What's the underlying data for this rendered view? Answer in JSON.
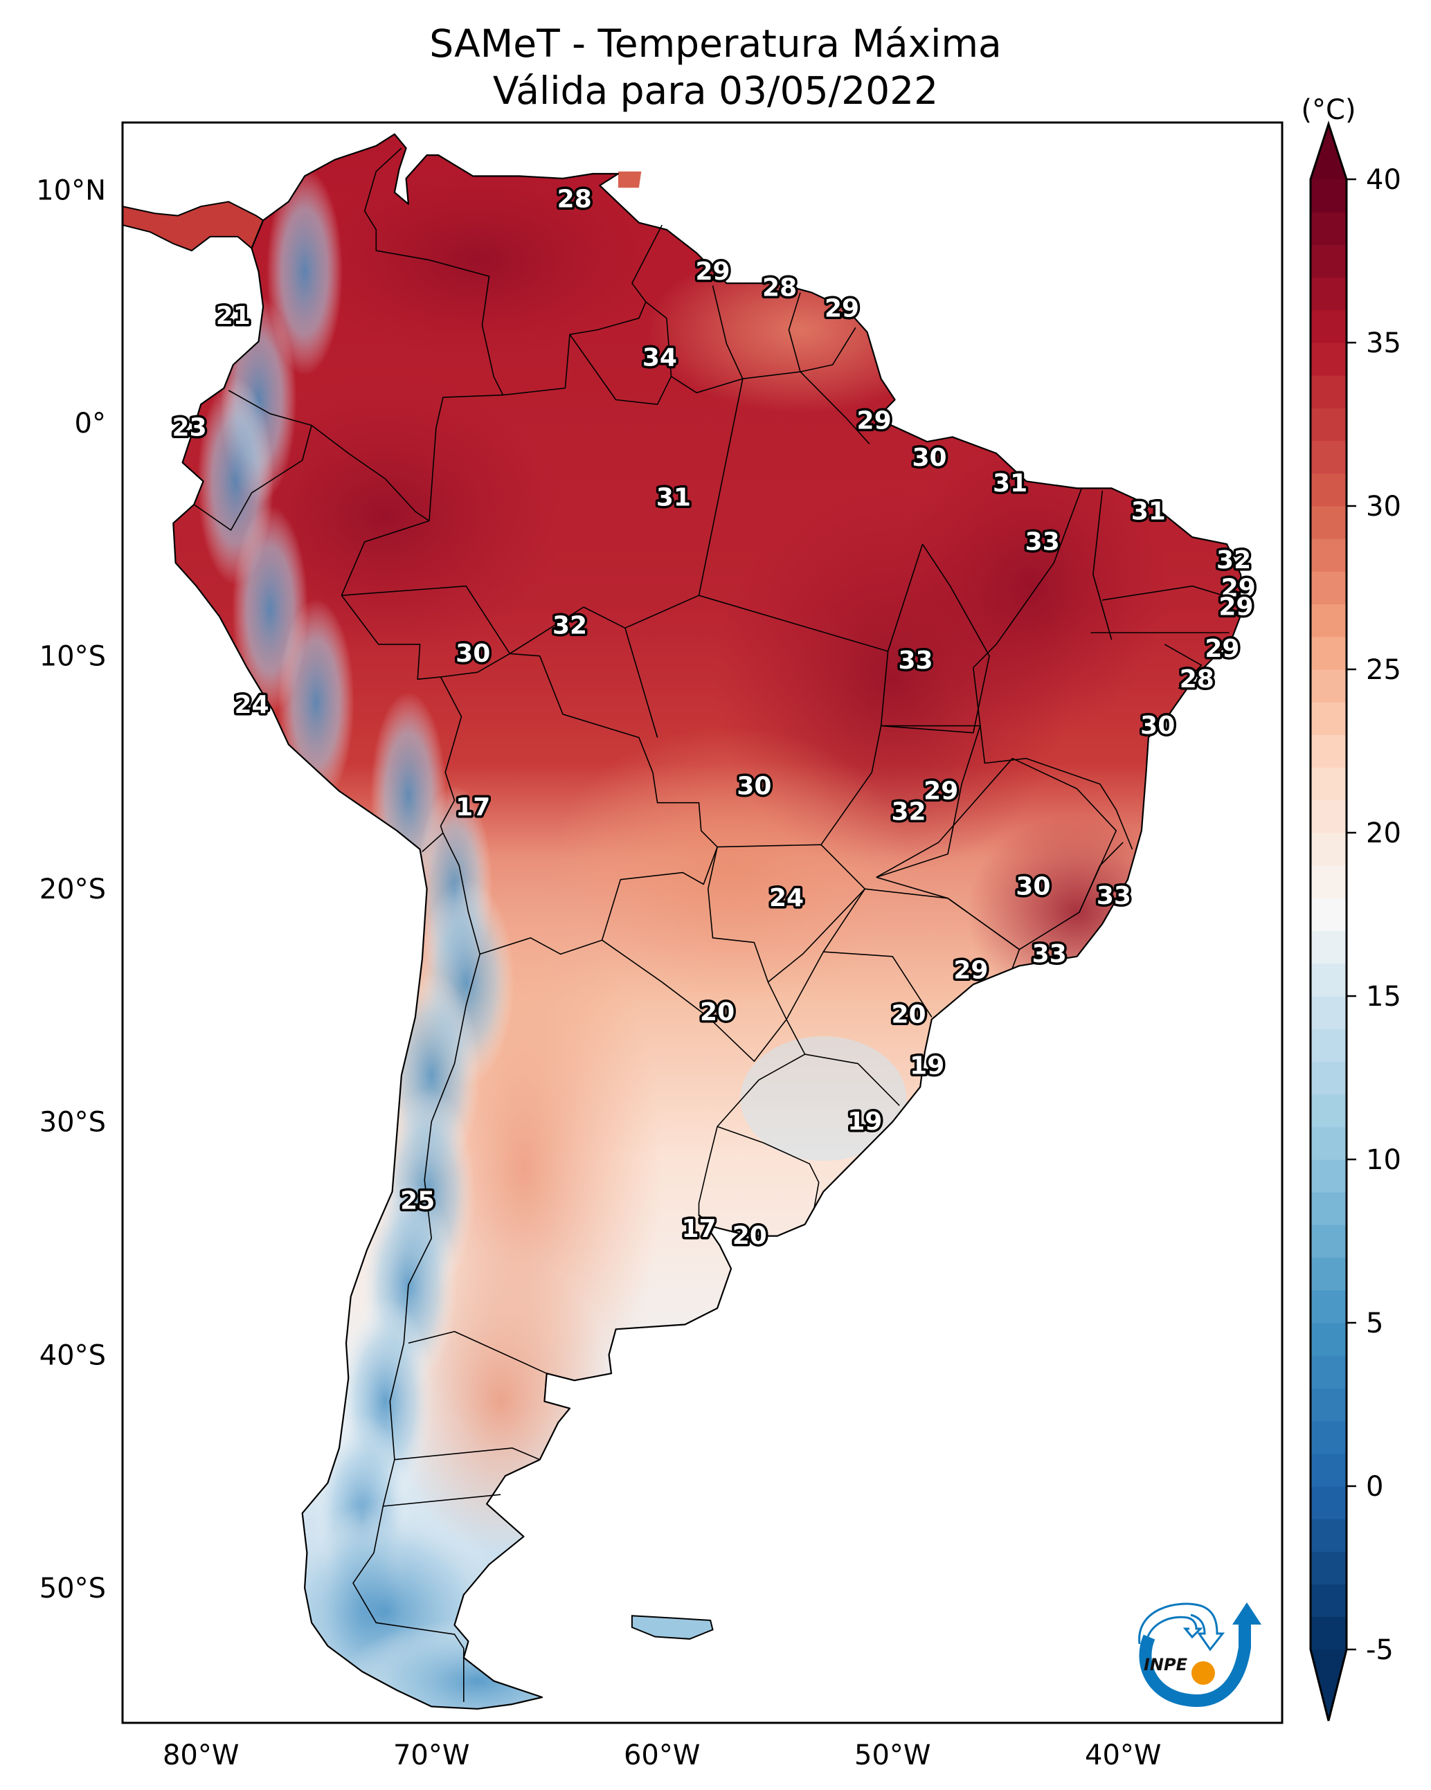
{
  "chart_data": {
    "type": "heatmap",
    "title": "SAMeT - Temperatura Máxima",
    "subtitle": "Válida para 03/05/2022",
    "product": "SAMeT",
    "variable": "Temperatura Máxima",
    "valid_date": "03/05/2022",
    "projection": "PlateCarree",
    "extent": {
      "lon": [
        -83.4,
        -33.1
      ],
      "lat": [
        -55.8,
        12.9
      ]
    },
    "xlabel": "",
    "ylabel": "",
    "x_ticks": [
      {
        "value": -80,
        "label": "80°W"
      },
      {
        "value": -70,
        "label": "70°W"
      },
      {
        "value": -60,
        "label": "60°W"
      },
      {
        "value": -50,
        "label": "50°W"
      },
      {
        "value": -40,
        "label": "40°W"
      }
    ],
    "y_ticks": [
      {
        "value": 10,
        "label": "10°N"
      },
      {
        "value": 0,
        "label": "0°"
      },
      {
        "value": -10,
        "label": "10°S"
      },
      {
        "value": -20,
        "label": "20°S"
      },
      {
        "value": -30,
        "label": "30°S"
      },
      {
        "value": -40,
        "label": "40°S"
      },
      {
        "value": -50,
        "label": "50°S"
      }
    ],
    "colorbar": {
      "label": "(°C)",
      "cmap": "RdBu_r",
      "range": [
        -5,
        40
      ],
      "extend": "both",
      "ticks": [
        40,
        35,
        30,
        25,
        20,
        15,
        10,
        5,
        0,
        -5
      ],
      "tick_labels": [
        "40",
        "35",
        "30",
        "25",
        "20",
        "15",
        "10",
        "5",
        "0",
        "-5"
      ],
      "stops": [
        {
          "value": -5,
          "color": "#053061"
        },
        {
          "value": 0,
          "color": "#2166ac"
        },
        {
          "value": 5,
          "color": "#4393c3"
        },
        {
          "value": 10,
          "color": "#92c5de"
        },
        {
          "value": 15,
          "color": "#d1e5f0"
        },
        {
          "value": 17.5,
          "color": "#f7f7f7"
        },
        {
          "value": 22,
          "color": "#fddbc7"
        },
        {
          "value": 26,
          "color": "#f4a582"
        },
        {
          "value": 30,
          "color": "#d6604d"
        },
        {
          "value": 35,
          "color": "#b2182b"
        },
        {
          "value": 40,
          "color": "#67001f"
        }
      ]
    },
    "station_labels": [
      {
        "lon": -63.8,
        "lat": 9.6,
        "value": 28
      },
      {
        "lon": -78.6,
        "lat": 4.6,
        "value": 21
      },
      {
        "lon": -57.8,
        "lat": 6.5,
        "value": 29
      },
      {
        "lon": -54.9,
        "lat": 5.8,
        "value": 28
      },
      {
        "lon": -52.2,
        "lat": 4.9,
        "value": 29
      },
      {
        "lon": -60.1,
        "lat": 2.8,
        "value": 34
      },
      {
        "lon": -80.5,
        "lat": -0.2,
        "value": 23
      },
      {
        "lon": -50.8,
        "lat": 0.1,
        "value": 29
      },
      {
        "lon": -48.4,
        "lat": -1.5,
        "value": 30
      },
      {
        "lon": -59.5,
        "lat": -3.2,
        "value": 31
      },
      {
        "lon": -44.9,
        "lat": -2.6,
        "value": 31
      },
      {
        "lon": -38.9,
        "lat": -3.8,
        "value": 31
      },
      {
        "lon": -43.5,
        "lat": -5.1,
        "value": 33
      },
      {
        "lon": -35.2,
        "lat": -5.9,
        "value": 32
      },
      {
        "lon": -35.0,
        "lat": -7.1,
        "value": 29
      },
      {
        "lon": -35.1,
        "lat": -7.9,
        "value": 29
      },
      {
        "lon": -64.0,
        "lat": -8.7,
        "value": 32
      },
      {
        "lon": -68.2,
        "lat": -9.9,
        "value": 30
      },
      {
        "lon": -35.7,
        "lat": -9.7,
        "value": 29
      },
      {
        "lon": -49.0,
        "lat": -10.2,
        "value": 33
      },
      {
        "lon": -36.8,
        "lat": -11.0,
        "value": 28
      },
      {
        "lon": -77.8,
        "lat": -12.1,
        "value": 24
      },
      {
        "lon": -38.5,
        "lat": -13.0,
        "value": 30
      },
      {
        "lon": -56.0,
        "lat": -15.6,
        "value": 30
      },
      {
        "lon": -47.9,
        "lat": -15.8,
        "value": 29
      },
      {
        "lon": -49.3,
        "lat": -16.7,
        "value": 32
      },
      {
        "lon": -68.2,
        "lat": -16.5,
        "value": 17
      },
      {
        "lon": -43.9,
        "lat": -19.9,
        "value": 30
      },
      {
        "lon": -40.4,
        "lat": -20.3,
        "value": 33
      },
      {
        "lon": -54.6,
        "lat": -20.4,
        "value": 24
      },
      {
        "lon": -43.2,
        "lat": -22.8,
        "value": 33
      },
      {
        "lon": -46.6,
        "lat": -23.5,
        "value": 29
      },
      {
        "lon": -57.6,
        "lat": -25.3,
        "value": 20
      },
      {
        "lon": -49.3,
        "lat": -25.4,
        "value": 20
      },
      {
        "lon": -48.5,
        "lat": -27.6,
        "value": 19
      },
      {
        "lon": -51.2,
        "lat": -30.0,
        "value": 19
      },
      {
        "lon": -70.6,
        "lat": -33.4,
        "value": 25
      },
      {
        "lon": -58.4,
        "lat": -34.6,
        "value": 17
      },
      {
        "lon": -56.2,
        "lat": -34.9,
        "value": 20
      }
    ]
  },
  "logo": {
    "text": "INPE",
    "name": "INPE logo"
  }
}
